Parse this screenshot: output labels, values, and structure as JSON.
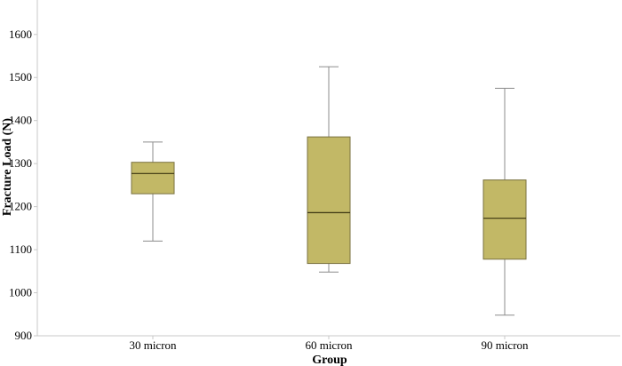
{
  "chart_data": {
    "type": "boxplot",
    "xlabel": "Group",
    "ylabel": "Fracture Load (N)",
    "ylim": [
      900,
      1680
    ],
    "yticks": [
      900,
      1000,
      1100,
      1200,
      1300,
      1400,
      1500,
      1600
    ],
    "grid": false,
    "box_color": "#c2b866",
    "box_edge_color": "#7a7240",
    "median_color": "#3a3410",
    "whisker_color": "#8c8c8c",
    "categories": [
      "30 micron",
      "60 micron",
      "90 micron"
    ],
    "boxes": [
      {
        "label": "30 micron",
        "min": 1120,
        "q1": 1230,
        "median": 1277,
        "q3": 1303,
        "max": 1350
      },
      {
        "label": "60 micron",
        "min": 1048,
        "q1": 1068,
        "median": 1186,
        "q3": 1362,
        "max": 1525
      },
      {
        "label": "90 micron",
        "min": 948,
        "q1": 1078,
        "median": 1173,
        "q3": 1262,
        "max": 1475
      }
    ]
  }
}
